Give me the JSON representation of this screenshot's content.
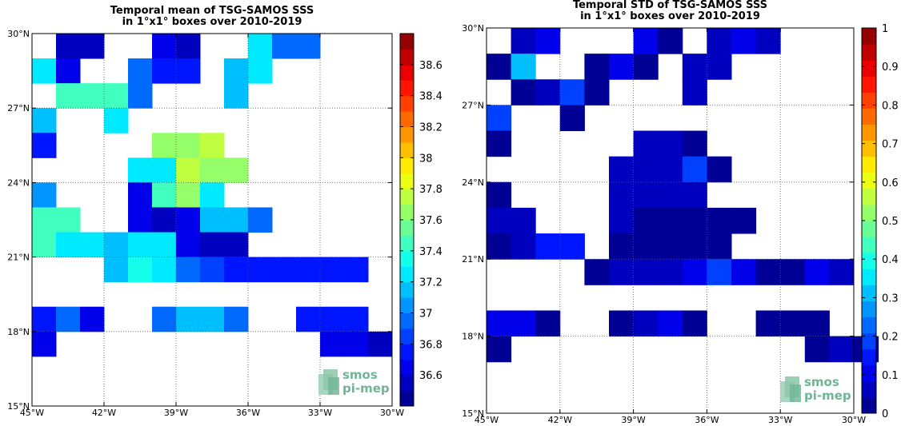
{
  "chart_data": [
    {
      "type": "heatmap",
      "title": [
        "Temporal mean of TSG-SAMOS SSS",
        "in 1°x1° boxes over 2010-2019"
      ],
      "xlabel": "",
      "ylabel": "",
      "xlim": [
        -45,
        -30
      ],
      "ylim": [
        15,
        30
      ],
      "x_ticks": [
        -45,
        -42,
        -39,
        -36,
        -33,
        -30
      ],
      "x_tick_labels": [
        "45°W",
        "42°W",
        "39°W",
        "36°W",
        "33°W",
        "30°W"
      ],
      "y_ticks": [
        15,
        18,
        21,
        24,
        27,
        30
      ],
      "y_tick_labels": [
        "15°N",
        "18°N",
        "21°N",
        "24°N",
        "27°N",
        "30°N"
      ],
      "grid": true,
      "colorbar": {
        "vmin": 36.4,
        "vmax": 38.8,
        "ticks": [
          36.6,
          36.8,
          37,
          37.2,
          37.4,
          37.6,
          37.8,
          38,
          38.2,
          38.4,
          38.6
        ],
        "tick_labels": [
          "36.6",
          "36.8",
          "37",
          "37.2",
          "37.4",
          "37.6",
          "37.8",
          "38",
          "38.2",
          "38.4",
          "38.6"
        ]
      },
      "cells": [
        [
          -44,
          29,
          36.5
        ],
        [
          -43,
          29,
          36.5
        ],
        [
          -40,
          29,
          36.6
        ],
        [
          -39,
          29,
          36.5
        ],
        [
          -36,
          29,
          37.2
        ],
        [
          -35,
          29,
          36.9
        ],
        [
          -34,
          29,
          36.9
        ],
        [
          -45,
          28,
          37.2
        ],
        [
          -44,
          28,
          36.6
        ],
        [
          -41,
          28,
          36.9
        ],
        [
          -40,
          28,
          36.8
        ],
        [
          -39,
          28,
          36.8
        ],
        [
          -37,
          28,
          37.1
        ],
        [
          -36,
          28,
          37.2
        ],
        [
          -44,
          27,
          37.4
        ],
        [
          -43,
          27,
          37.4
        ],
        [
          -42,
          27,
          37.4
        ],
        [
          -41,
          27,
          36.9
        ],
        [
          -37,
          27,
          37.1
        ],
        [
          -45,
          26,
          37.1
        ],
        [
          -42,
          26,
          37.2
        ],
        [
          -45,
          25,
          36.8
        ],
        [
          -40,
          25,
          37.6
        ],
        [
          -39,
          25,
          37.6
        ],
        [
          -38,
          25,
          37.75
        ],
        [
          -41,
          24,
          37.2
        ],
        [
          -40,
          24,
          37.2
        ],
        [
          -39,
          24,
          37.7
        ],
        [
          -38,
          24,
          37.6
        ],
        [
          -37,
          24,
          37.6
        ],
        [
          -45,
          23,
          37.0
        ],
        [
          -41,
          23,
          36.65
        ],
        [
          -40,
          23,
          37.45
        ],
        [
          -39,
          23,
          37.6
        ],
        [
          -38,
          23,
          37.25
        ],
        [
          -45,
          22,
          37.4
        ],
        [
          -44,
          22,
          37.4
        ],
        [
          -41,
          22,
          36.6
        ],
        [
          -40,
          22,
          36.5
        ],
        [
          -39,
          22,
          36.6
        ],
        [
          -38,
          22,
          37.1
        ],
        [
          -37,
          22,
          37.1
        ],
        [
          -36,
          22,
          36.95
        ],
        [
          -45,
          21,
          37.4
        ],
        [
          -44,
          21,
          37.25
        ],
        [
          -43,
          21,
          37.25
        ],
        [
          -42,
          21,
          37.15
        ],
        [
          -41,
          21,
          37.25
        ],
        [
          -40,
          21,
          37.25
        ],
        [
          -39,
          21,
          36.6
        ],
        [
          -38,
          21,
          36.5
        ],
        [
          -37,
          21,
          36.5
        ],
        [
          -42,
          20,
          37.15
        ],
        [
          -41,
          20,
          37.35
        ],
        [
          -40,
          20,
          37.25
        ],
        [
          -39,
          20,
          36.95
        ],
        [
          -38,
          20,
          36.85
        ],
        [
          -37,
          20,
          36.75
        ],
        [
          -36,
          20,
          36.8
        ],
        [
          -35,
          20,
          36.8
        ],
        [
          -34,
          20,
          36.75
        ],
        [
          -33,
          20,
          36.75
        ],
        [
          -32,
          20,
          36.8
        ],
        [
          -45,
          18,
          36.8
        ],
        [
          -44,
          18,
          36.9
        ],
        [
          -43,
          18,
          36.6
        ],
        [
          -40,
          18,
          36.95
        ],
        [
          -39,
          18,
          37.1
        ],
        [
          -38,
          18,
          37.1
        ],
        [
          -37,
          18,
          36.95
        ],
        [
          -34,
          18,
          36.8
        ],
        [
          -33,
          18,
          36.8
        ],
        [
          -32,
          18,
          36.8
        ],
        [
          -45,
          17,
          36.6
        ],
        [
          -33,
          17,
          36.6
        ],
        [
          -32,
          17,
          36.6
        ],
        [
          -31,
          17,
          36.55
        ]
      ]
    },
    {
      "type": "heatmap",
      "title": [
        "Temporal STD of TSG-SAMOS SSS",
        "in 1°x1° boxes over 2010-2019"
      ],
      "xlabel": "",
      "ylabel": "",
      "xlim": [
        -45,
        -30
      ],
      "ylim": [
        15,
        30
      ],
      "x_ticks": [
        -45,
        -42,
        -39,
        -36,
        -33,
        -30
      ],
      "x_tick_labels": [
        "45°W",
        "42°W",
        "39°W",
        "36°W",
        "33°W",
        "30°W"
      ],
      "y_ticks": [
        15,
        18,
        21,
        24,
        27,
        30
      ],
      "y_tick_labels": [
        "15°N",
        "18°N",
        "21°N",
        "24°N",
        "27°N",
        "30°N"
      ],
      "grid": true,
      "colorbar": {
        "vmin": 0,
        "vmax": 1,
        "ticks": [
          0,
          0.1,
          0.2,
          0.3,
          0.4,
          0.5,
          0.6,
          0.7,
          0.8,
          0.9,
          1
        ],
        "tick_labels": [
          "0",
          "0.1",
          "0.2",
          "0.3",
          "0.4",
          "0.5",
          "0.6",
          "0.7",
          "0.8",
          "0.9",
          "1"
        ]
      },
      "cells": [
        [
          -44,
          29,
          0.08
        ],
        [
          -43,
          29,
          0.12
        ],
        [
          -39,
          29,
          0.12
        ],
        [
          -38,
          29,
          0.04
        ],
        [
          -36,
          29,
          0.05
        ],
        [
          -35,
          29,
          0.12
        ],
        [
          -34,
          29,
          0.05
        ],
        [
          -45,
          28,
          0.04
        ],
        [
          -44,
          28,
          0.3
        ],
        [
          -41,
          28,
          0.04
        ],
        [
          -40,
          28,
          0.1
        ],
        [
          -39,
          28,
          0.04
        ],
        [
          -37,
          28,
          0.06
        ],
        [
          -36,
          28,
          0.06
        ],
        [
          -44,
          27,
          0.04
        ],
        [
          -43,
          27,
          0.08
        ],
        [
          -42,
          27,
          0.2
        ],
        [
          -41,
          27,
          0.04
        ],
        [
          -37,
          27,
          0.06
        ],
        [
          -45,
          26,
          0.18
        ],
        [
          -42,
          26,
          0.04
        ],
        [
          -45,
          25,
          0.04
        ],
        [
          -39,
          25,
          0.07
        ],
        [
          -38,
          25,
          0.07
        ],
        [
          -37,
          25,
          0.04
        ],
        [
          -40,
          24,
          0.05
        ],
        [
          -39,
          24,
          0.05
        ],
        [
          -38,
          24,
          0.07
        ],
        [
          -37,
          24,
          0.18
        ],
        [
          -36,
          24,
          0.04
        ],
        [
          -45,
          23,
          0.04
        ],
        [
          -40,
          23,
          0.05
        ],
        [
          -39,
          23,
          0.05
        ],
        [
          -38,
          23,
          0.07
        ],
        [
          -37,
          23,
          0.07
        ],
        [
          -45,
          22,
          0.07
        ],
        [
          -44,
          22,
          0.07
        ],
        [
          -40,
          22,
          0.08
        ],
        [
          -39,
          22,
          0.04
        ],
        [
          -38,
          22,
          0.04
        ],
        [
          -37,
          22,
          0.04
        ],
        [
          -36,
          22,
          0.04
        ],
        [
          -35,
          22,
          0.04
        ],
        [
          -45,
          21,
          0.04
        ],
        [
          -44,
          21,
          0.08
        ],
        [
          -43,
          21,
          0.13
        ],
        [
          -42,
          21,
          0.13
        ],
        [
          -40,
          21,
          0.04
        ],
        [
          -39,
          21,
          0.04
        ],
        [
          -38,
          21,
          0.04
        ],
        [
          -37,
          21,
          0.04
        ],
        [
          -36,
          21,
          0.04
        ],
        [
          -41,
          20,
          0.04
        ],
        [
          -40,
          20,
          0.07
        ],
        [
          -39,
          20,
          0.07
        ],
        [
          -38,
          20,
          0.07
        ],
        [
          -37,
          20,
          0.12
        ],
        [
          -36,
          20,
          0.2
        ],
        [
          -35,
          20,
          0.1
        ],
        [
          -34,
          20,
          0.04
        ],
        [
          -33,
          20,
          0.04
        ],
        [
          -32,
          20,
          0.12
        ],
        [
          -31,
          20,
          0.08
        ],
        [
          -45,
          18,
          0.1
        ],
        [
          -44,
          18,
          0.1
        ],
        [
          -43,
          18,
          0.04
        ],
        [
          -40,
          18,
          0.04
        ],
        [
          -39,
          18,
          0.07
        ],
        [
          -38,
          18,
          0.1
        ],
        [
          -37,
          18,
          0.04
        ],
        [
          -34,
          18,
          0.04
        ],
        [
          -33,
          18,
          0.04
        ],
        [
          -32,
          18,
          0.04
        ],
        [
          -45,
          17,
          0.04
        ],
        [
          -32,
          17,
          0.04
        ],
        [
          -31,
          17,
          0.08
        ],
        [
          -30,
          17,
          0.04
        ]
      ]
    }
  ],
  "logo": {
    "line1": "smos",
    "line2": "pi-mep",
    "icon": "smos-pi-mep-logo-icon"
  }
}
